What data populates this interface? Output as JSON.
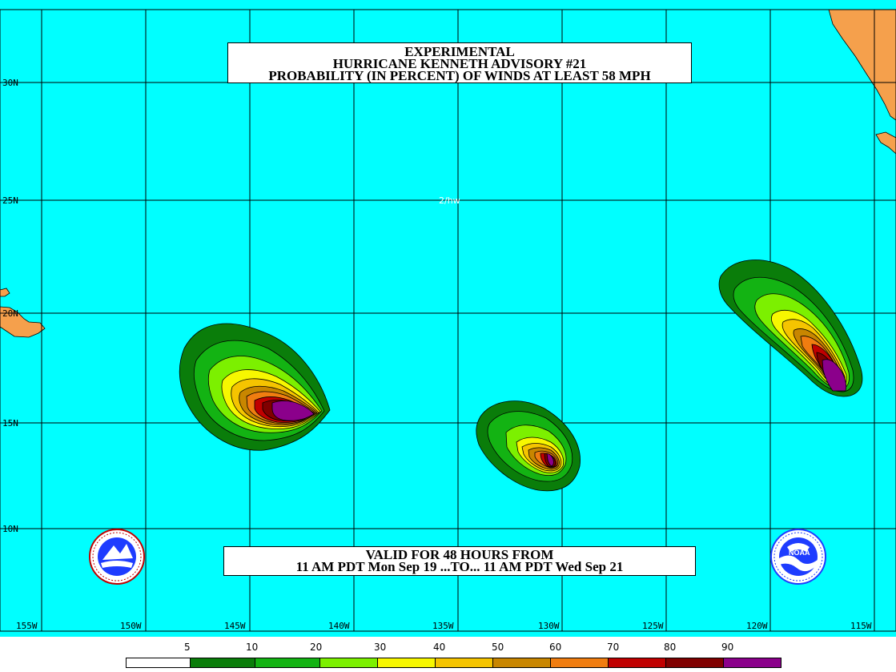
{
  "title": {
    "line1": "EXPERIMENTAL",
    "line2": "HURRICANE KENNETH ADVISORY #21",
    "line3": "PROBABILITY (IN PERCENT) OF WINDS AT LEAST 58 MPH"
  },
  "valid": {
    "line1": "VALID FOR 48 HOURS FROM",
    "line2": "11 AM PDT Mon Sep 19 ...TO... 11 AM PDT Wed Sep 21"
  },
  "watermark": "2/hw",
  "lat_labels": [
    "30N",
    "25N",
    "20N",
    "15N",
    "10N"
  ],
  "lon_labels": [
    "155W",
    "150W",
    "145W",
    "140W",
    "135W",
    "130W",
    "125W",
    "120W",
    "115W"
  ],
  "legend": {
    "labels": [
      "5",
      "10",
      "20",
      "30",
      "40",
      "50",
      "60",
      "70",
      "80",
      "90"
    ],
    "colors": [
      "#ffffff",
      "#0a7d0a",
      "#13b313",
      "#7cf000",
      "#f7f700",
      "#f5c400",
      "#c88600",
      "#f07d10",
      "#c00000",
      "#800000",
      "#8b008b"
    ]
  },
  "colors": {
    "ocean": "#00ffff",
    "land": "#f5a04c",
    "grid": "#000000"
  },
  "logos": [
    "nws-logo",
    "noaa-logo"
  ]
}
